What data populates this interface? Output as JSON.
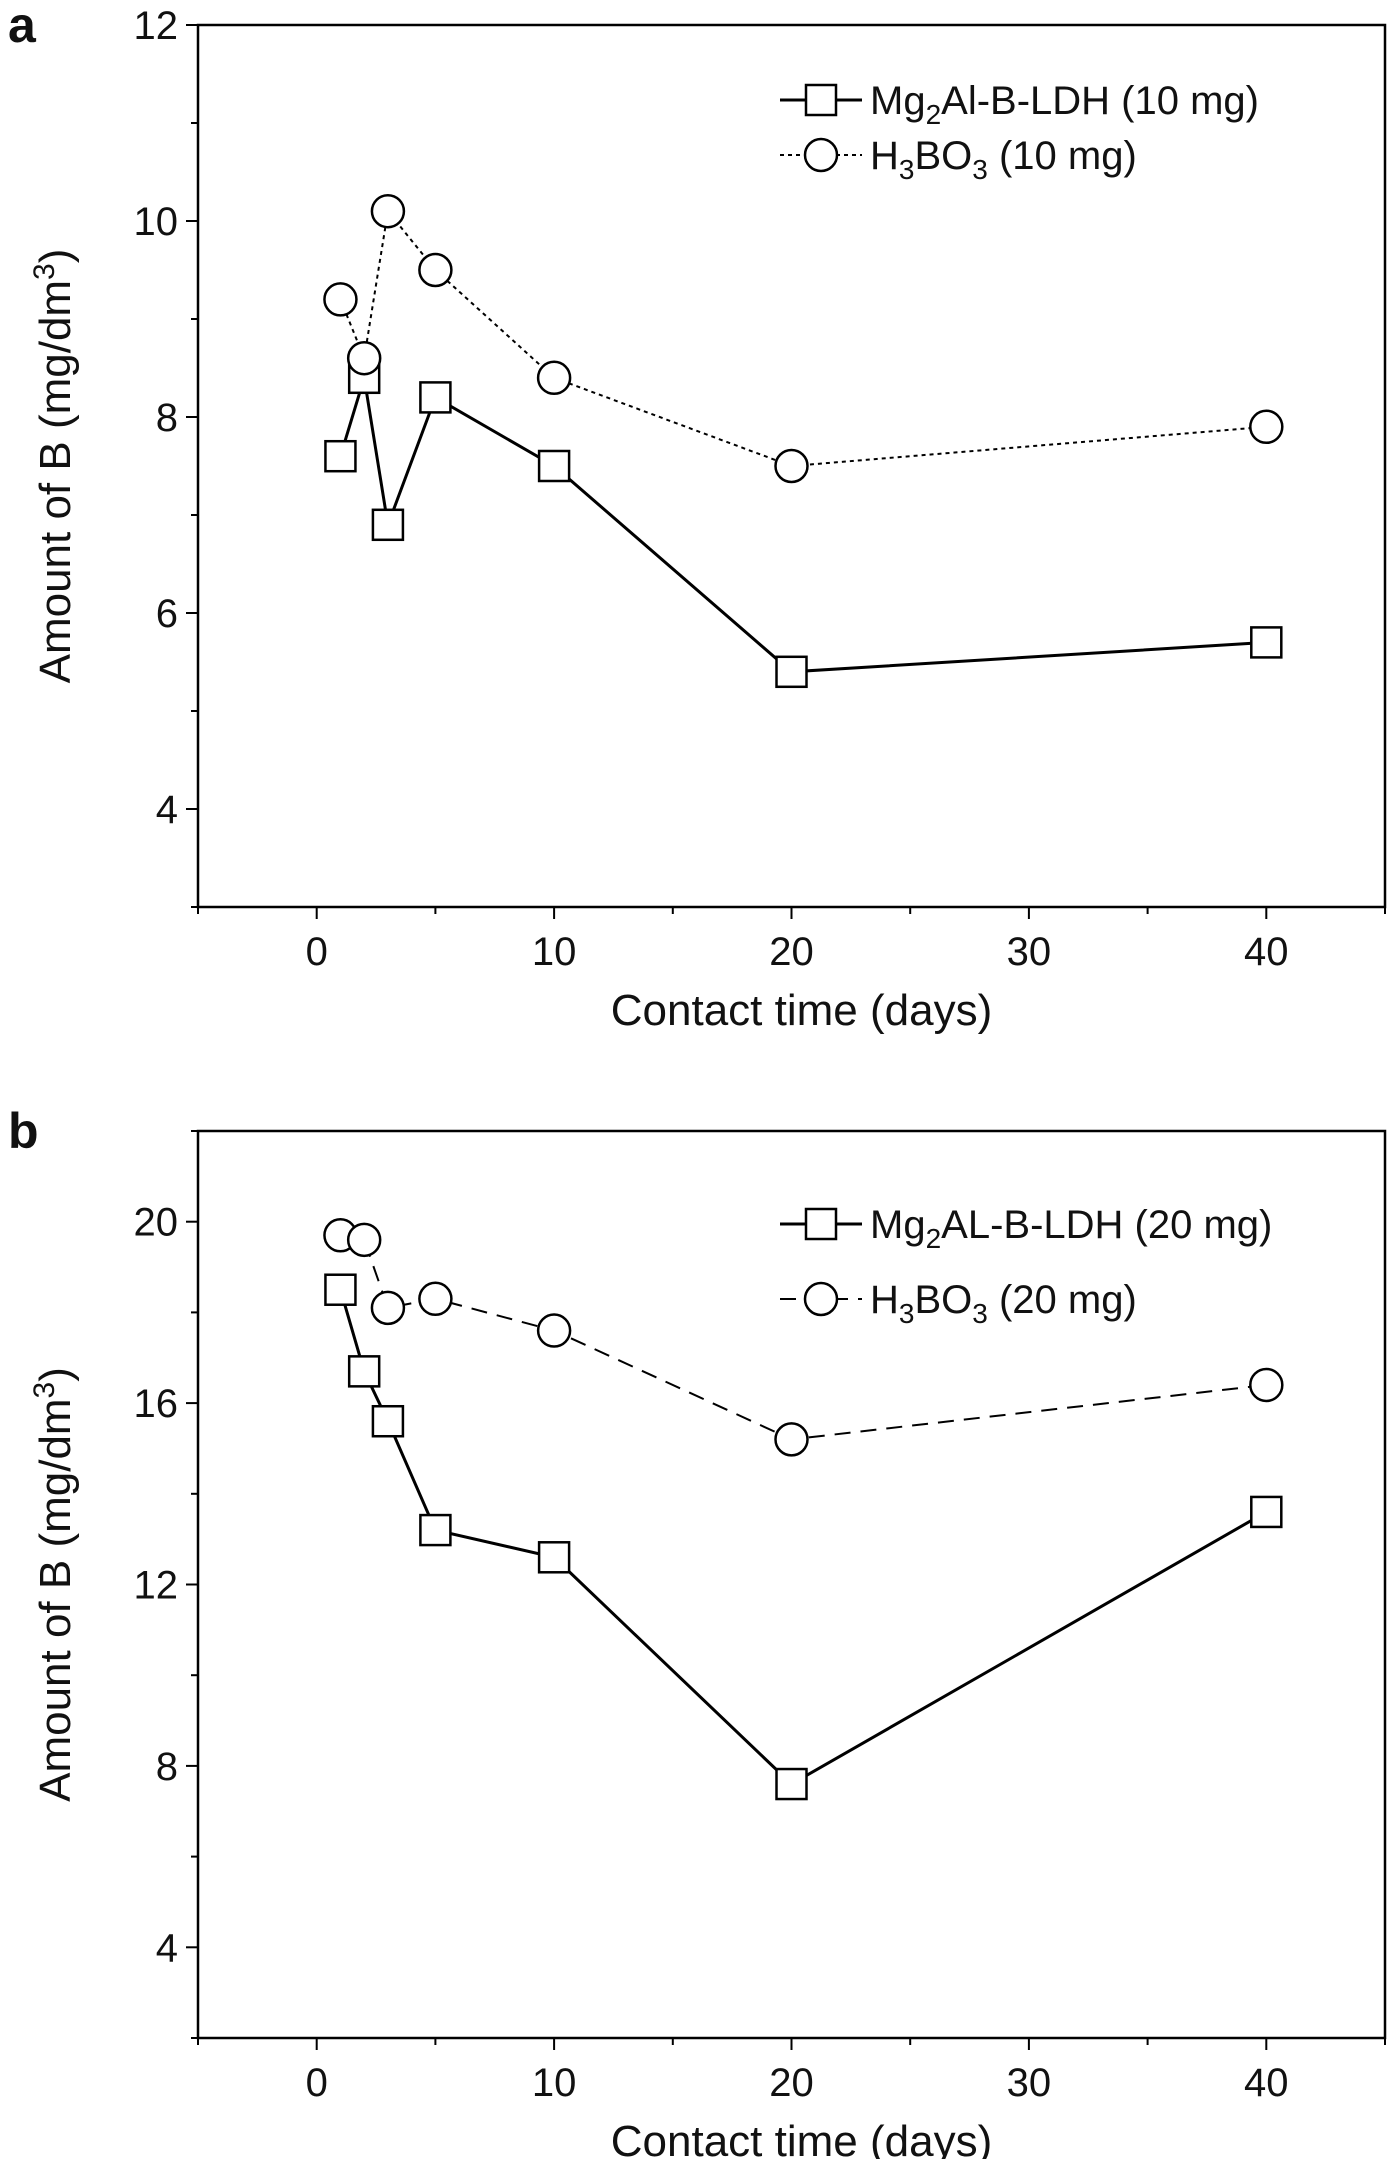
{
  "chart_data": [
    {
      "panel": "a",
      "type": "line",
      "title": "",
      "xlabel": "Contact time (days)",
      "ylabel": "Amount of B (mg/dm³)",
      "ylabel_parts": {
        "base": "Amount of B (mg/dm",
        "sup": "3",
        "close": ")"
      },
      "xlim": [
        -5,
        45
      ],
      "ylim": [
        3,
        12
      ],
      "xticks": [
        0,
        10,
        20,
        30,
        40
      ],
      "yticks": [
        4,
        6,
        8,
        10,
        12
      ],
      "grid": false,
      "legend_position": "top-right",
      "series": [
        {
          "name": "Mg2Al-B-LDH (10 mg)",
          "legend_parts": [
            {
              "t": "Mg"
            },
            {
              "t": "2",
              "sub": true
            },
            {
              "t": "Al-B-LDH (10 mg)"
            }
          ],
          "marker": "square",
          "line": "solid",
          "x": [
            1,
            2,
            3,
            5,
            10,
            20,
            40
          ],
          "y": [
            7.6,
            8.4,
            6.9,
            8.2,
            7.5,
            5.4,
            5.7
          ]
        },
        {
          "name": "H3BO3 (10 mg)",
          "legend_parts": [
            {
              "t": "H"
            },
            {
              "t": "3",
              "sub": true
            },
            {
              "t": "BO"
            },
            {
              "t": "3",
              "sub": true
            },
            {
              "t": " (10 mg)"
            }
          ],
          "marker": "circle",
          "line": "dotted",
          "x": [
            1,
            2,
            3,
            5,
            10,
            20,
            40
          ],
          "y": [
            9.2,
            8.6,
            10.1,
            9.5,
            8.4,
            7.5,
            7.9
          ]
        }
      ]
    },
    {
      "panel": "b",
      "type": "line",
      "title": "",
      "xlabel": "Contact time (days)",
      "ylabel": "Amount of B (mg/dm³)",
      "ylabel_parts": {
        "base": "Amount of B (mg/dm",
        "sup": "3",
        "close": ")"
      },
      "xlim": [
        -5,
        45
      ],
      "ylim": [
        2,
        22
      ],
      "xticks": [
        0,
        10,
        20,
        30,
        40
      ],
      "yticks": [
        4,
        8,
        12,
        16,
        20
      ],
      "grid": false,
      "legend_position": "top-right",
      "series": [
        {
          "name": "Mg2AL-B-LDH (20 mg)",
          "legend_parts": [
            {
              "t": "Mg"
            },
            {
              "t": "2",
              "sub": true
            },
            {
              "t": "AL-B-LDH (20 mg)"
            }
          ],
          "marker": "square",
          "line": "solid",
          "x": [
            1,
            2,
            3,
            5,
            10,
            20,
            40
          ],
          "y": [
            18.5,
            16.7,
            15.6,
            13.2,
            12.6,
            7.6,
            13.6
          ]
        },
        {
          "name": "H3BO3 (20 mg)",
          "legend_parts": [
            {
              "t": "H"
            },
            {
              "t": "3",
              "sub": true
            },
            {
              "t": "BO"
            },
            {
              "t": "3",
              "sub": true
            },
            {
              "t": " (20 mg)"
            }
          ],
          "marker": "circle",
          "line": "dashed",
          "x": [
            1,
            2,
            3,
            5,
            10,
            20,
            40
          ],
          "y": [
            19.7,
            19.6,
            18.1,
            18.3,
            17.6,
            15.2,
            16.4
          ]
        }
      ]
    }
  ]
}
